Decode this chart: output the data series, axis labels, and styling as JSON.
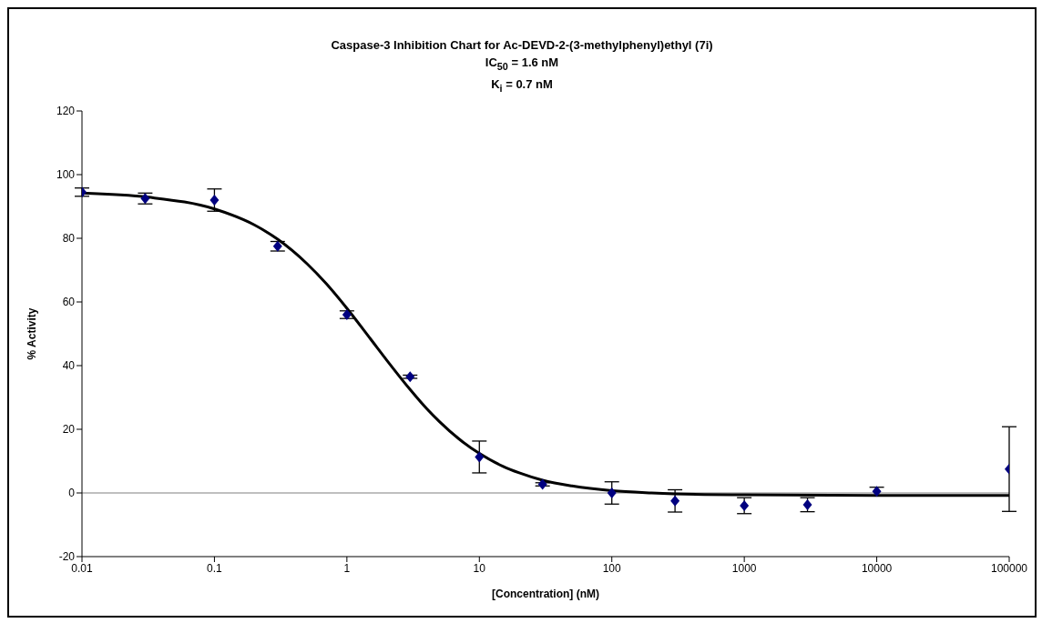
{
  "chart_data": {
    "type": "scatter",
    "title": "Caspase-3 Inhibition Chart for Ac-DEVD-2-(3-methylphenyl)ethyl (7i)\nIC$_{50}$ = 1.6 nM\nK$_{i}$ = 0.7 nM",
    "xlabel": "[Concentration] (nM)",
    "ylabel": "% Activity",
    "log": "x",
    "xlim": [
      0.01,
      100000
    ],
    "xticks": [
      0.01,
      0.1,
      1,
      10,
      100,
      1000,
      10000,
      100000
    ],
    "ylim": [
      -20,
      120
    ],
    "yticks": [
      -20,
      0,
      20,
      40,
      60,
      80,
      100,
      120
    ],
    "grid": false,
    "legend": false,
    "ref_lines": [
      {
        "axis": "y",
        "value": 0,
        "color": "#808080"
      }
    ],
    "series": [
      {
        "color": "#000080",
        "marker": "diamond",
        "x": [
          0.01,
          0.03,
          0.1,
          0.3,
          1,
          3,
          10,
          30,
          100,
          300,
          1000,
          3000,
          10000,
          100000
        ],
        "values": [
          94.5,
          92.5,
          92,
          77.5,
          56,
          36.5,
          11.3,
          2.7,
          0,
          -2.5,
          -4,
          -3.7,
          0.5,
          7.5
        ],
        "errors": [
          1.3,
          1.7,
          3.5,
          1.5,
          1.2,
          0.5,
          5,
          0.5,
          3.5,
          3.5,
          2.5,
          2.2,
          1.3,
          13.3
        ]
      },
      {
        "type": "line",
        "color": "#000000",
        "marker": "none",
        "x": [
          0.01,
          0.0316,
          0.1,
          0.2,
          0.3,
          0.5,
          0.7,
          1,
          1.5,
          2,
          3,
          4,
          5,
          7,
          10,
          15,
          20,
          30,
          50,
          100,
          200,
          500,
          1000,
          10000,
          100000
        ],
        "values": [
          94.2,
          92.9,
          89.2,
          84.2,
          79.7,
          72.0,
          65.7,
          58.0,
          48.5,
          41.7,
          32.5,
          26.5,
          22.4,
          17.0,
          12.4,
          8.4,
          6.3,
          4.0,
          2.2,
          0.7,
          0,
          -0.5,
          -0.6,
          -0.8,
          -0.8
        ]
      }
    ]
  }
}
